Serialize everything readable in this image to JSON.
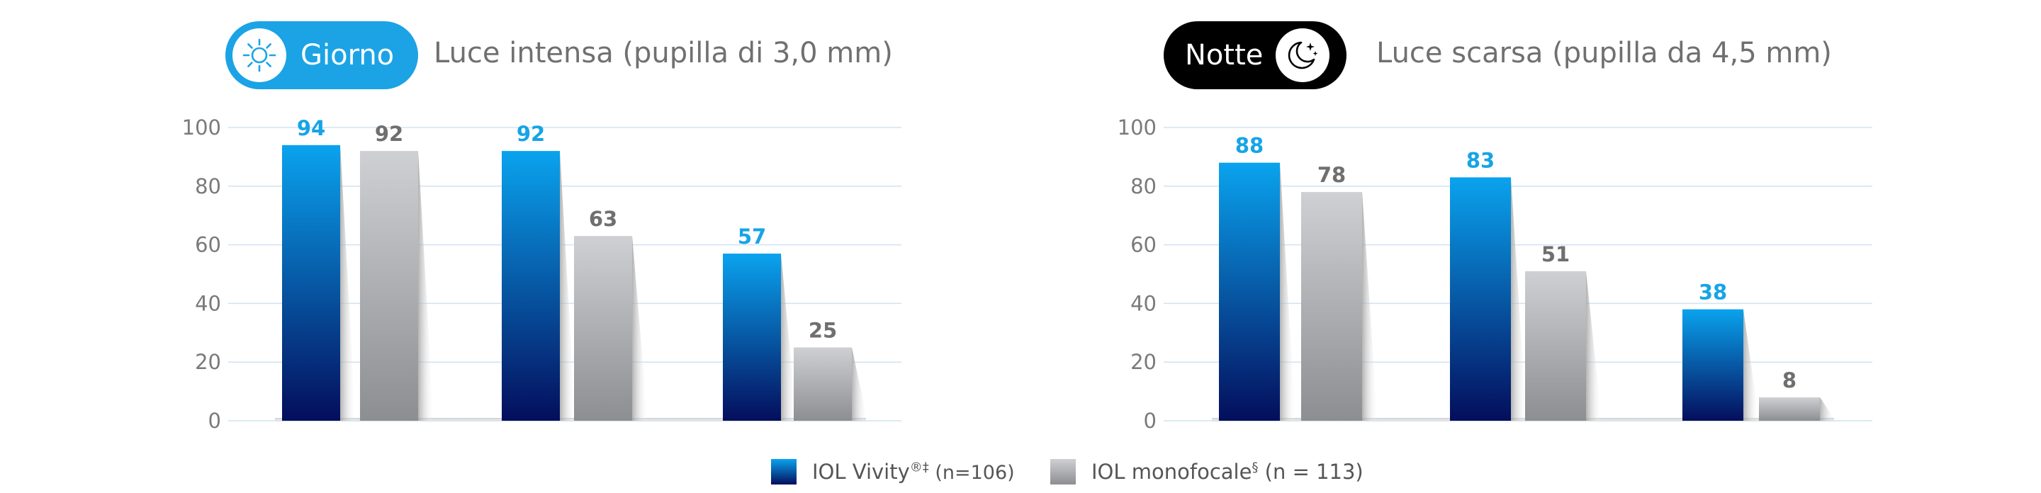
{
  "colors": {
    "vivity": "#0a7fd0",
    "vivity_label": "#16a4e8",
    "mono": "#b4b5b8",
    "mono_label": "#6f6f6f",
    "day_accent": "#1ba3e6",
    "night_accent": "#000000",
    "gridline": "#cfe3f3",
    "axis_text": "#7a7a7a"
  },
  "legend": {
    "vivity": {
      "text": "IOL Vivity",
      "sup": "®‡",
      "detail": " (n=106)"
    },
    "mono": {
      "text": "IOL monofocale",
      "sup": "§",
      "detail": " (n = 113)"
    }
  },
  "chart_data": [
    {
      "type": "bar",
      "badge": {
        "label": "Giorno",
        "icon": "sun-icon"
      },
      "subtitle": "Luce intensa (pupilla di 3,0 mm)",
      "categories": [
        "",
        "",
        ""
      ],
      "yticks": [
        "0",
        "20",
        "40",
        "60",
        "80",
        "100"
      ],
      "ylim": [
        0,
        100
      ],
      "grid": true,
      "series": [
        {
          "name": "IOL Vivity®‡ (n=106)",
          "values": [
            94,
            92,
            57
          ]
        },
        {
          "name": "IOL monofocale§ (n = 113)",
          "values": [
            92,
            63,
            25
          ]
        }
      ]
    },
    {
      "type": "bar",
      "badge": {
        "label": "Notte",
        "icon": "moon-stars-icon"
      },
      "subtitle": "Luce scarsa (pupilla da 4,5 mm)",
      "categories": [
        "",
        "",
        ""
      ],
      "yticks": [
        "0",
        "20",
        "40",
        "60",
        "80",
        "100"
      ],
      "ylim": [
        0,
        100
      ],
      "grid": true,
      "series": [
        {
          "name": "IOL Vivity®‡ (n=106)",
          "values": [
            88,
            83,
            38
          ]
        },
        {
          "name": "IOL monofocale§ (n = 113)",
          "values": [
            78,
            51,
            8
          ]
        }
      ]
    }
  ]
}
